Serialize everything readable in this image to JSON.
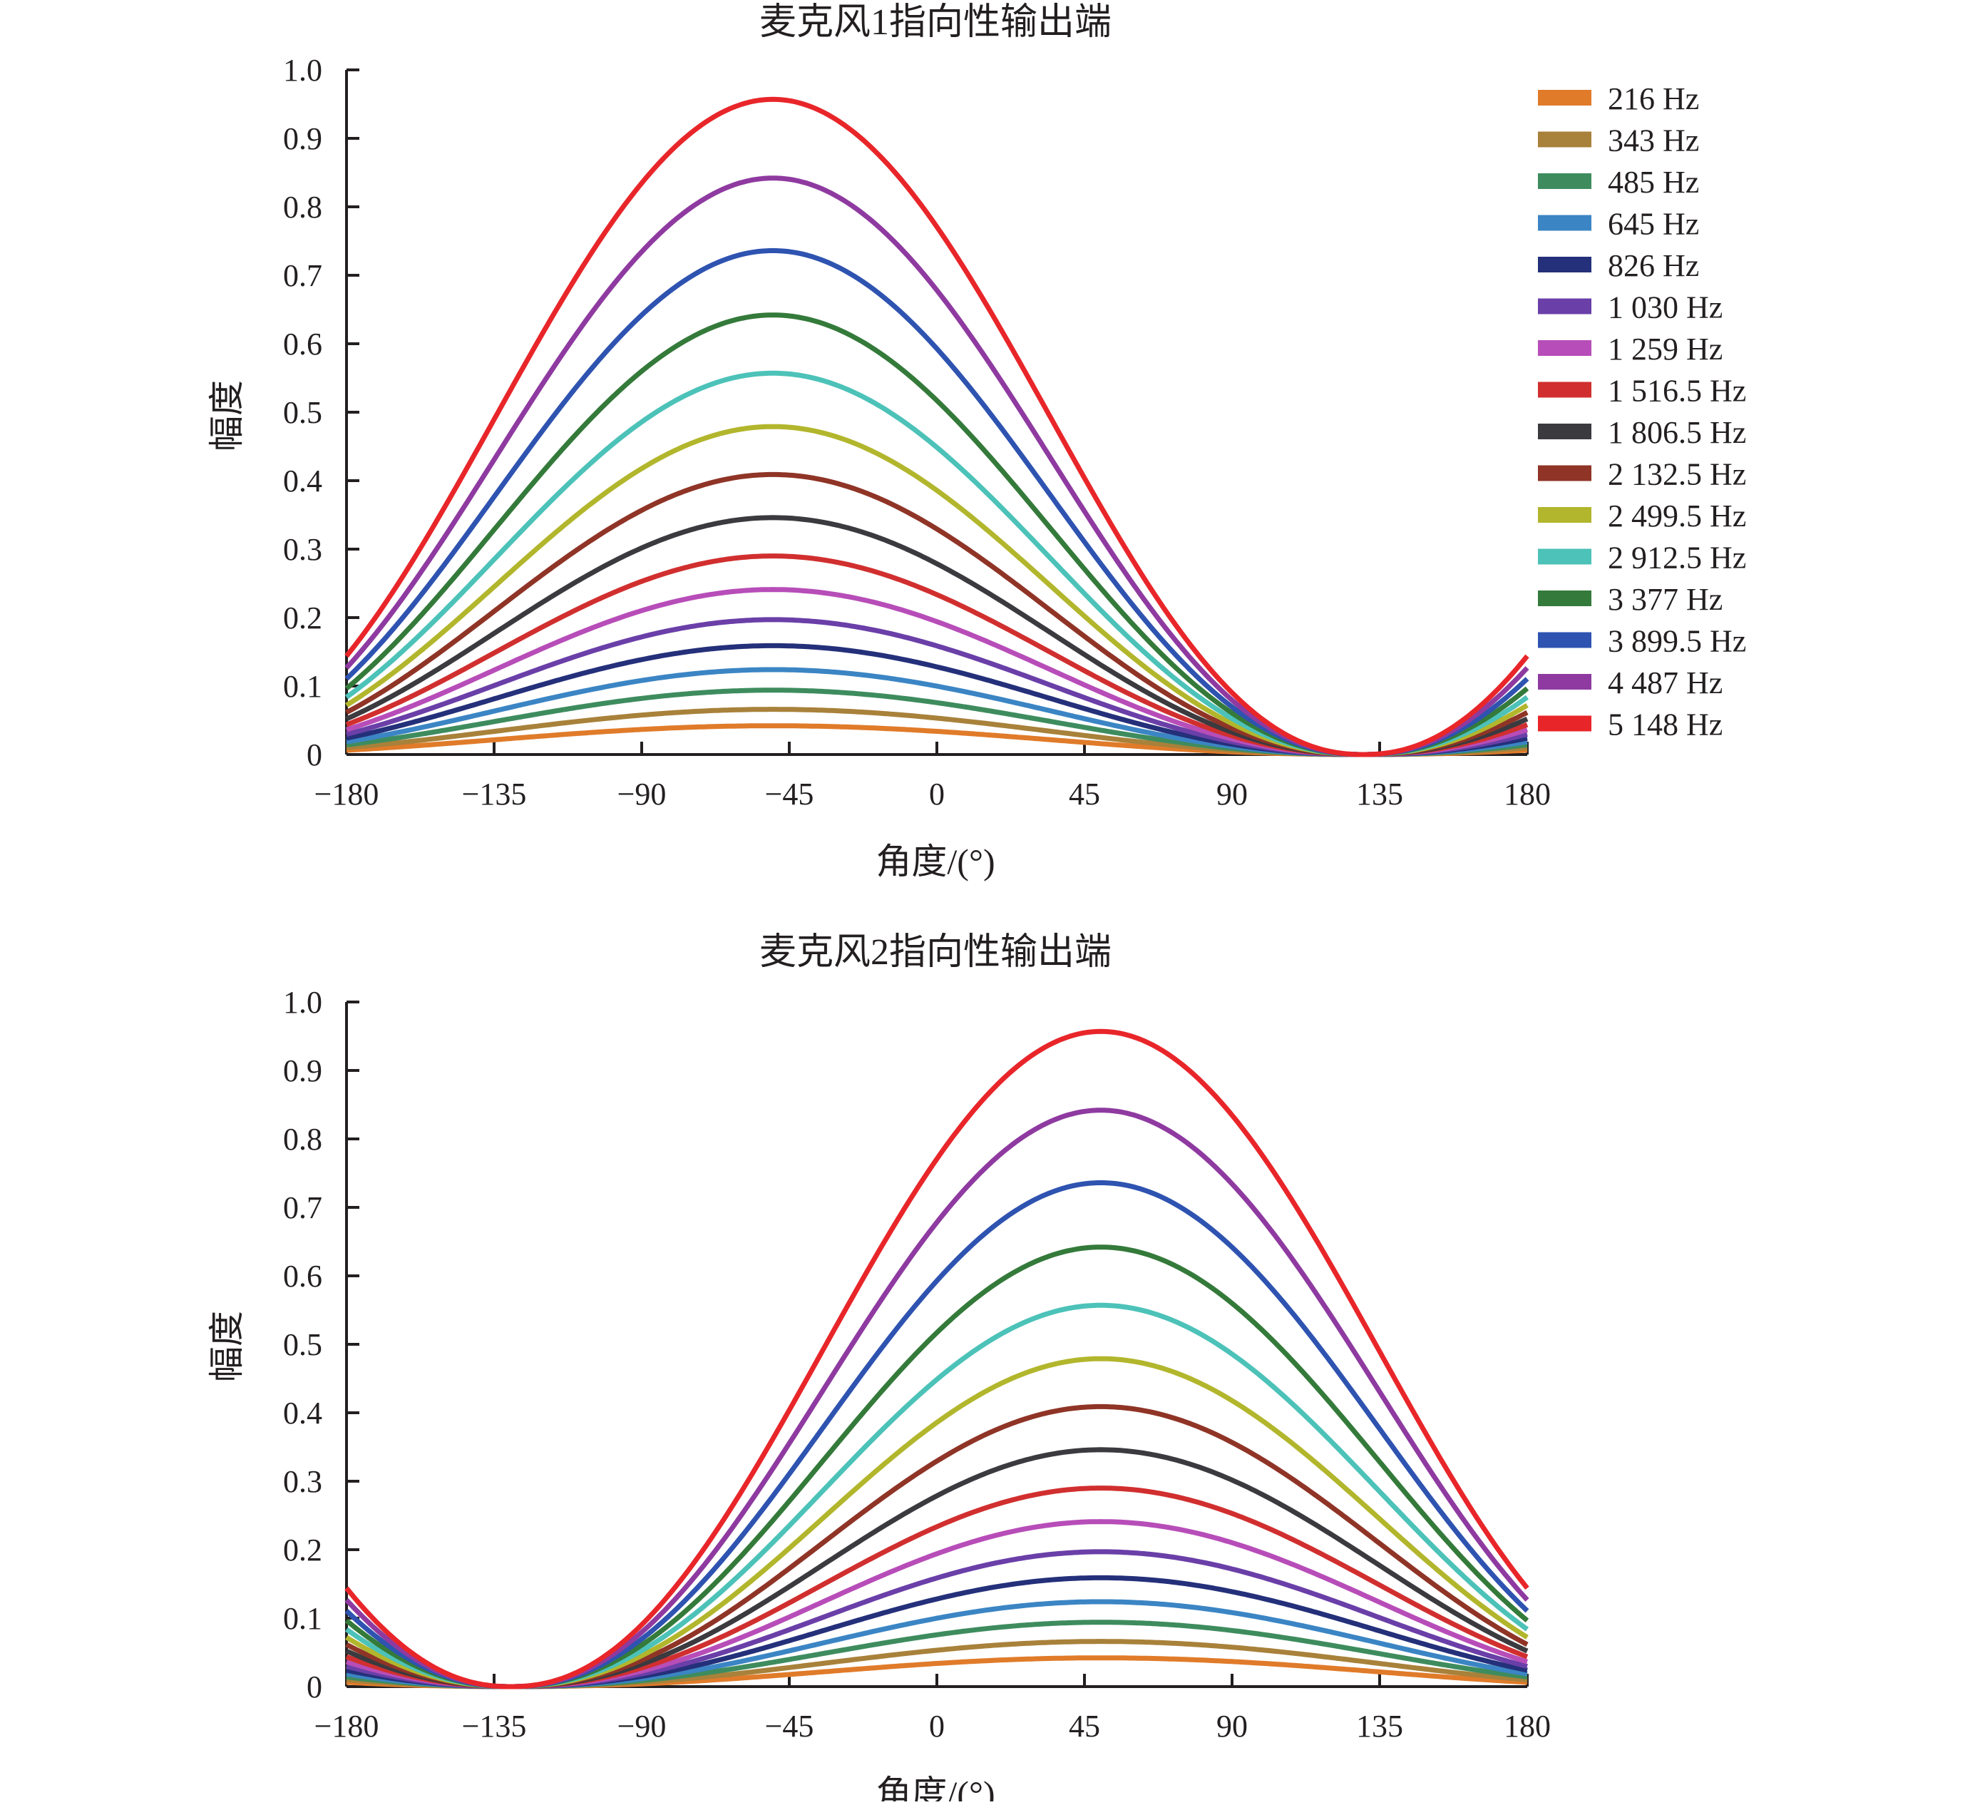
{
  "chart_data": [
    {
      "type": "line",
      "title": "麦克风1指向性输出端",
      "xlabel": "角度/(°)",
      "ylabel": "幅度",
      "xlim": [
        -180,
        180
      ],
      "ylim": [
        0,
        1.0
      ],
      "xticks": [
        -180,
        -135,
        -90,
        -45,
        0,
        45,
        90,
        135,
        180
      ],
      "xtick_labels": [
        "−180",
        "−135",
        "−90",
        "−45",
        "0",
        "45",
        "90",
        "135",
        "180"
      ],
      "yticks": [
        0,
        0.1,
        0.2,
        0.3,
        0.4,
        0.5,
        0.6,
        0.7,
        0.8,
        0.9,
        1.0
      ],
      "ytick_labels": [
        "0",
        "0.1",
        "0.2",
        "0.3",
        "0.4",
        "0.5",
        "0.6",
        "0.7",
        "0.8",
        "0.9",
        "1.0"
      ],
      "grid": false,
      "legend": "top-right",
      "peak_angle_deg": -50,
      "null_angle_deg": 130,
      "series": [
        {
          "name": "216 Hz",
          "peak": 0.042,
          "color": "#e07b2a"
        },
        {
          "name": "343 Hz",
          "peak": 0.066,
          "color": "#a8813a"
        },
        {
          "name": "485 Hz",
          "peak": 0.094,
          "color": "#3e8c5e"
        },
        {
          "name": "645 Hz",
          "peak": 0.124,
          "color": "#3b85c4"
        },
        {
          "name": "826 Hz",
          "peak": 0.159,
          "color": "#24307a"
        },
        {
          "name": "1 030 Hz",
          "peak": 0.197,
          "color": "#6a3fa8"
        },
        {
          "name": "1 259 Hz",
          "peak": 0.241,
          "color": "#b74db8"
        },
        {
          "name": "1 516.5 Hz",
          "peak": 0.29,
          "color": "#d12f2f"
        },
        {
          "name": "1 806.5 Hz",
          "peak": 0.346,
          "color": "#3a3a3f"
        },
        {
          "name": "2 132.5 Hz",
          "peak": 0.409,
          "color": "#8f3426"
        },
        {
          "name": "2 499.5 Hz",
          "peak": 0.479,
          "color": "#b2b62c"
        },
        {
          "name": "2 912.5 Hz",
          "peak": 0.557,
          "color": "#4cc2b8"
        },
        {
          "name": "3 377 Hz",
          "peak": 0.642,
          "color": "#347a3a"
        },
        {
          "name": "3 899.5 Hz",
          "peak": 0.736,
          "color": "#2e53b0"
        },
        {
          "name": "4 487 Hz",
          "peak": 0.842,
          "color": "#8e3aa0"
        },
        {
          "name": "5 148 Hz",
          "peak": 0.957,
          "color": "#e8262a"
        }
      ]
    },
    {
      "type": "line",
      "title": "麦克风2指向性输出端",
      "xlabel": "角度/(°)",
      "ylabel": "幅度",
      "xlim": [
        -180,
        180
      ],
      "ylim": [
        0,
        1.0
      ],
      "xticks": [
        -180,
        -135,
        -90,
        -45,
        0,
        45,
        90,
        135,
        180
      ],
      "xtick_labels": [
        "−180",
        "−135",
        "−90",
        "−45",
        "0",
        "45",
        "90",
        "135",
        "180"
      ],
      "yticks": [
        0,
        0.1,
        0.2,
        0.3,
        0.4,
        0.5,
        0.6,
        0.7,
        0.8,
        0.9,
        1.0
      ],
      "ytick_labels": [
        "0",
        "0.1",
        "0.2",
        "0.3",
        "0.4",
        "0.5",
        "0.6",
        "0.7",
        "0.8",
        "0.9",
        "1.0"
      ],
      "grid": false,
      "legend": "none",
      "peak_angle_deg": 50,
      "null_angle_deg": -130,
      "series": [
        {
          "name": "216 Hz",
          "peak": 0.042,
          "color": "#e07b2a"
        },
        {
          "name": "343 Hz",
          "peak": 0.066,
          "color": "#a8813a"
        },
        {
          "name": "485 Hz",
          "peak": 0.094,
          "color": "#3e8c5e"
        },
        {
          "name": "645 Hz",
          "peak": 0.124,
          "color": "#3b85c4"
        },
        {
          "name": "826 Hz",
          "peak": 0.159,
          "color": "#24307a"
        },
        {
          "name": "1 030 Hz",
          "peak": 0.197,
          "color": "#6a3fa8"
        },
        {
          "name": "1 259 Hz",
          "peak": 0.241,
          "color": "#b74db8"
        },
        {
          "name": "1 516.5 Hz",
          "peak": 0.29,
          "color": "#d12f2f"
        },
        {
          "name": "1 806.5 Hz",
          "peak": 0.346,
          "color": "#3a3a3f"
        },
        {
          "name": "2 132.5 Hz",
          "peak": 0.409,
          "color": "#8f3426"
        },
        {
          "name": "2 499.5 Hz",
          "peak": 0.479,
          "color": "#b2b62c"
        },
        {
          "name": "2 912.5 Hz",
          "peak": 0.557,
          "color": "#4cc2b8"
        },
        {
          "name": "3 377 Hz",
          "peak": 0.642,
          "color": "#347a3a"
        },
        {
          "name": "3 899.5 Hz",
          "peak": 0.736,
          "color": "#2e53b0"
        },
        {
          "name": "4 487 Hz",
          "peak": 0.842,
          "color": "#8e3aa0"
        },
        {
          "name": "5 148 Hz",
          "peak": 0.957,
          "color": "#e8262a"
        }
      ]
    }
  ]
}
